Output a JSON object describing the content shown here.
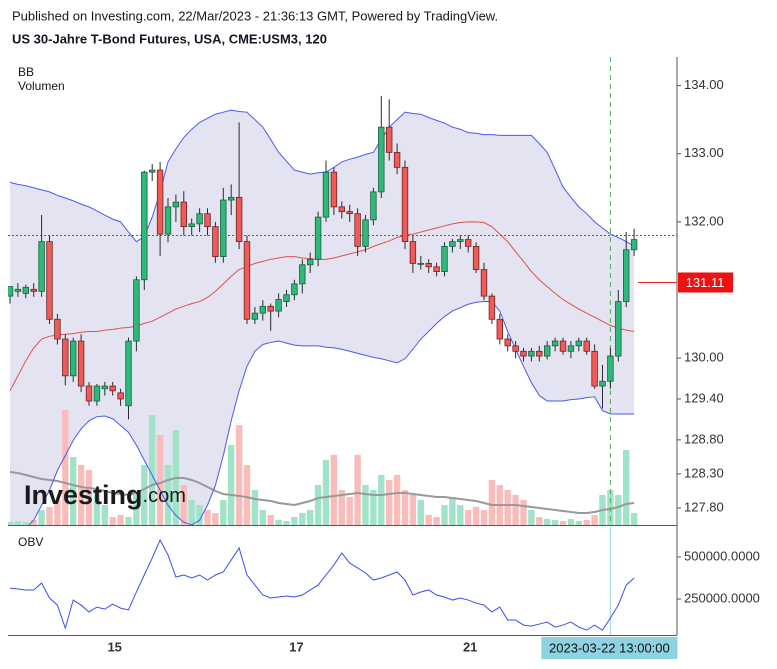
{
  "chart_data": {
    "type": "candlestick",
    "source": "Published on Investing.com, 22/Mar/2023 - 21:36:13 GMT, Powered by TradingView.",
    "title": "US 30-Jahre T-Bond Futures, USA, CME:USM3, 120",
    "watermark": {
      "brand": "Investing",
      "suffix": ".com"
    },
    "categories": [
      null,
      null,
      null,
      null,
      null,
      null,
      null,
      null,
      null,
      null,
      null,
      null,
      null,
      "15",
      null,
      null,
      null,
      null,
      null,
      null,
      null,
      null,
      null,
      null,
      null,
      null,
      null,
      null,
      null,
      null,
      null,
      null,
      null,
      null,
      null,
      null,
      "17",
      null,
      null,
      null,
      null,
      null,
      null,
      null,
      null,
      null,
      null,
      null,
      null,
      null,
      null,
      null,
      null,
      null,
      null,
      null,
      null,
      null,
      "21",
      null,
      null,
      null,
      null,
      null,
      null,
      null,
      null,
      null,
      null,
      null,
      null,
      null,
      null,
      null,
      null,
      null,
      "2023-03-22 13:00:00",
      null,
      null,
      null
    ],
    "crosshair_index": 76,
    "up_color": "#2fb87a",
    "down_color": "#f05a57",
    "ohlc": [
      [
        130.91,
        131.05,
        130.8,
        131.05
      ],
      [
        130.98,
        131.1,
        130.9,
        131.01
      ],
      [
        130.95,
        131.08,
        130.88,
        131.04
      ],
      [
        131.01,
        131.1,
        130.9,
        130.98
      ],
      [
        130.98,
        132.1,
        130.9,
        131.71
      ],
      [
        131.71,
        131.8,
        130.5,
        130.57
      ],
      [
        130.57,
        130.65,
        130.2,
        130.28
      ],
      [
        130.28,
        130.35,
        129.6,
        129.74
      ],
      [
        129.74,
        130.3,
        129.65,
        130.25
      ],
      [
        130.25,
        130.35,
        129.5,
        129.59
      ],
      [
        129.59,
        129.65,
        129.3,
        129.37
      ],
      [
        129.37,
        129.62,
        129.3,
        129.59
      ],
      [
        129.55,
        129.65,
        129.45,
        129.59
      ],
      [
        129.59,
        129.65,
        129.45,
        129.52
      ],
      [
        129.49,
        129.55,
        129.3,
        129.4
      ],
      [
        129.3,
        130.3,
        129.1,
        130.25
      ],
      [
        130.25,
        131.2,
        130.1,
        131.15
      ],
      [
        131.15,
        132.75,
        131.0,
        132.73
      ],
      [
        132.73,
        132.85,
        132.6,
        132.76
      ],
      [
        132.76,
        132.88,
        131.5,
        131.82
      ],
      [
        131.82,
        132.35,
        131.7,
        132.22
      ],
      [
        132.22,
        132.4,
        132.0,
        132.29
      ],
      [
        132.29,
        132.45,
        131.8,
        131.93
      ],
      [
        131.93,
        132.05,
        131.8,
        131.97
      ],
      [
        131.97,
        132.2,
        131.85,
        132.12
      ],
      [
        132.12,
        132.2,
        131.8,
        131.93
      ],
      [
        131.93,
        132.0,
        131.4,
        131.49
      ],
      [
        131.49,
        132.5,
        131.4,
        132.32
      ],
      [
        132.32,
        132.55,
        132.1,
        132.36
      ],
      [
        132.36,
        133.46,
        131.6,
        131.71
      ],
      [
        131.71,
        131.8,
        130.5,
        130.57
      ],
      [
        130.57,
        130.75,
        130.5,
        130.66
      ],
      [
        130.66,
        130.85,
        130.55,
        130.76
      ],
      [
        130.76,
        130.8,
        130.4,
        130.69
      ],
      [
        130.69,
        130.95,
        130.6,
        130.86
      ],
      [
        130.83,
        131.0,
        130.75,
        130.93
      ],
      [
        130.93,
        131.15,
        130.85,
        131.09
      ],
      [
        131.09,
        131.45,
        130.95,
        131.37
      ],
      [
        131.37,
        131.55,
        131.25,
        131.45
      ],
      [
        131.45,
        132.15,
        131.35,
        132.07
      ],
      [
        132.07,
        132.9,
        132.0,
        132.73
      ],
      [
        132.73,
        132.8,
        132.1,
        132.22
      ],
      [
        132.22,
        132.3,
        132.05,
        132.15
      ],
      [
        132.15,
        132.25,
        132.0,
        132.12
      ],
      [
        132.12,
        132.2,
        131.5,
        131.64
      ],
      [
        131.64,
        132.1,
        131.55,
        132.03
      ],
      [
        132.03,
        132.5,
        131.95,
        132.44
      ],
      [
        132.44,
        133.85,
        132.35,
        133.39
      ],
      [
        133.39,
        133.8,
        132.9,
        133.02
      ],
      [
        133.02,
        133.15,
        132.7,
        132.8
      ],
      [
        132.8,
        132.9,
        131.6,
        131.71
      ],
      [
        131.71,
        131.8,
        131.25,
        131.39
      ],
      [
        131.39,
        131.5,
        131.3,
        131.39
      ],
      [
        131.39,
        131.45,
        131.25,
        131.34
      ],
      [
        131.34,
        131.4,
        131.2,
        131.27
      ],
      [
        131.27,
        131.7,
        131.2,
        131.64
      ],
      [
        131.64,
        131.75,
        131.55,
        131.71
      ],
      [
        131.71,
        131.8,
        131.6,
        131.74
      ],
      [
        131.74,
        131.8,
        131.55,
        131.64
      ],
      [
        131.64,
        131.7,
        131.25,
        131.3
      ],
      [
        131.3,
        131.4,
        130.85,
        130.91
      ],
      [
        130.91,
        130.95,
        130.5,
        130.57
      ],
      [
        130.57,
        130.65,
        130.2,
        130.28
      ],
      [
        130.28,
        130.35,
        130.1,
        130.18
      ],
      [
        130.18,
        130.25,
        130.0,
        130.1
      ],
      [
        130.1,
        130.15,
        129.95,
        130.03
      ],
      [
        130.03,
        130.15,
        129.95,
        130.1
      ],
      [
        130.1,
        130.18,
        129.95,
        130.03
      ],
      [
        130.03,
        130.25,
        129.98,
        130.18
      ],
      [
        130.18,
        130.3,
        130.1,
        130.25
      ],
      [
        130.25,
        130.3,
        130.05,
        130.1
      ],
      [
        130.1,
        130.25,
        130.0,
        130.18
      ],
      [
        130.18,
        130.3,
        130.1,
        130.25
      ],
      [
        130.25,
        130.3,
        130.05,
        130.1
      ],
      [
        130.1,
        130.2,
        129.55,
        129.59
      ],
      [
        129.59,
        129.9,
        129.26,
        129.66
      ],
      [
        129.66,
        130.15,
        129.55,
        130.03
      ],
      [
        130.03,
        131.0,
        129.95,
        130.83
      ],
      [
        130.83,
        131.85,
        130.75,
        131.59
      ],
      [
        131.59,
        131.9,
        131.5,
        131.74
      ]
    ],
    "bollinger": {
      "name": "BB",
      "band_color": "#4a5af0",
      "middle_color": "#e0504d",
      "fill": "#e3e3f1",
      "upper": [
        132.58,
        132.55,
        132.53,
        132.5,
        132.47,
        132.44,
        132.39,
        132.35,
        132.31,
        132.26,
        132.22,
        132.16,
        132.1,
        132.04,
        132.0,
        131.85,
        131.71,
        131.78,
        132.07,
        132.44,
        132.88,
        133.07,
        133.24,
        133.36,
        133.46,
        133.52,
        133.58,
        133.61,
        133.64,
        133.62,
        133.61,
        133.5,
        133.39,
        133.21,
        133.02,
        132.89,
        132.76,
        132.73,
        132.7,
        132.72,
        132.73,
        132.8,
        132.88,
        132.92,
        132.95,
        132.99,
        133.02,
        133.21,
        133.39,
        133.5,
        133.61,
        133.59,
        133.58,
        133.53,
        133.49,
        133.45,
        133.39,
        133.36,
        133.31,
        133.3,
        133.28,
        133.28,
        133.27,
        133.27,
        133.27,
        133.27,
        133.27,
        133.15,
        133.02,
        132.77,
        132.51,
        132.36,
        132.22,
        132.12,
        132.0,
        131.91,
        131.82,
        131.77,
        131.71,
        131.64
      ],
      "middle": [
        129.52,
        129.74,
        129.96,
        130.15,
        130.28,
        130.32,
        130.34,
        130.35,
        130.36,
        130.38,
        130.39,
        130.39,
        130.41,
        130.42,
        130.44,
        130.45,
        130.47,
        130.51,
        130.54,
        130.6,
        130.66,
        130.72,
        130.76,
        130.8,
        130.83,
        130.89,
        130.98,
        131.09,
        131.2,
        131.3,
        131.34,
        131.39,
        131.42,
        131.45,
        131.47,
        131.49,
        131.49,
        131.47,
        131.46,
        131.45,
        131.45,
        131.47,
        131.5,
        131.53,
        131.56,
        131.59,
        131.64,
        131.68,
        131.72,
        131.77,
        131.8,
        131.82,
        131.85,
        131.88,
        131.91,
        131.94,
        131.97,
        131.99,
        132.0,
        132.0,
        131.99,
        131.93,
        131.82,
        131.71,
        131.56,
        131.42,
        131.27,
        131.15,
        131.05,
        130.95,
        130.86,
        130.79,
        130.72,
        130.66,
        130.6,
        130.54,
        130.48,
        130.44,
        130.41,
        130.39
      ],
      "lower": [
        127.33,
        127.4,
        127.5,
        127.62,
        127.84,
        128.06,
        128.35,
        128.57,
        128.79,
        128.96,
        129.08,
        129.14,
        129.15,
        129.11,
        129.01,
        128.91,
        128.72,
        128.5,
        128.28,
        128.06,
        127.84,
        127.69,
        127.59,
        127.55,
        127.62,
        127.84,
        128.13,
        128.57,
        129.08,
        129.52,
        129.88,
        130.1,
        130.2,
        130.23,
        130.25,
        130.22,
        130.19,
        130.18,
        130.18,
        130.18,
        130.16,
        130.15,
        130.13,
        130.1,
        130.07,
        130.04,
        130.01,
        129.99,
        129.96,
        129.93,
        129.99,
        130.13,
        130.28,
        130.39,
        130.51,
        130.61,
        130.69,
        130.74,
        130.79,
        130.82,
        130.83,
        130.83,
        130.69,
        130.39,
        130.13,
        129.88,
        129.64,
        129.45,
        129.37,
        129.37,
        129.37,
        129.39,
        129.4,
        129.42,
        129.43,
        129.23,
        129.18,
        129.18,
        129.18,
        129.18
      ]
    },
    "volume": {
      "name": "Volumen",
      "up_color": "#9fe3c8",
      "down_color": "#f9bcbb",
      "ma_color": "#999999",
      "values": [
        3,
        4,
        3,
        5,
        15,
        18,
        25,
        115,
        68,
        60,
        55,
        35,
        20,
        8,
        10,
        8,
        30,
        60,
        110,
        90,
        60,
        95,
        40,
        25,
        20,
        15,
        12,
        25,
        80,
        100,
        60,
        35,
        15,
        10,
        5,
        4,
        8,
        12,
        15,
        40,
        65,
        70,
        35,
        28,
        70,
        40,
        35,
        50,
        45,
        50,
        35,
        30,
        25,
        10,
        8,
        20,
        28,
        20,
        15,
        18,
        15,
        45,
        40,
        35,
        30,
        25,
        15,
        8,
        6,
        5,
        4,
        6,
        4,
        5,
        10,
        30,
        35,
        30,
        75,
        12
      ],
      "ma": [
        53,
        52,
        50,
        48,
        46,
        45,
        44,
        42,
        40,
        38,
        37,
        36,
        34,
        32,
        31,
        30,
        32,
        36,
        40,
        42,
        45,
        47,
        47,
        45,
        42,
        38,
        34,
        31,
        30,
        29,
        28,
        26,
        25,
        24,
        22,
        21,
        20,
        22,
        24,
        27,
        28,
        29,
        30,
        31,
        32,
        31,
        30,
        30,
        31,
        32,
        32,
        31,
        30,
        29,
        28,
        28,
        27,
        26,
        25,
        24,
        22,
        20,
        20,
        20,
        20,
        19,
        18,
        17,
        16,
        15,
        14,
        13,
        12,
        12,
        13,
        15,
        16,
        18,
        21,
        22
      ]
    },
    "ylim": [
      127.55,
      134.42
    ],
    "yticks": [
      {
        "value": 134,
        "label": "134.00"
      },
      {
        "value": 133,
        "label": "133.00"
      },
      {
        "value": 132,
        "label": "132.00"
      },
      {
        "value": 130,
        "label": "130.00"
      },
      {
        "value": 129.4,
        "label": "129.40"
      },
      {
        "value": 128.8,
        "label": "128.80"
      },
      {
        "value": 128.3,
        "label": "128.30"
      },
      {
        "value": 127.8,
        "label": "127.80"
      }
    ],
    "price_line": 131.8,
    "price_marker": {
      "value": 131.11,
      "label": "131.11"
    },
    "obv": {
      "name": "OBV",
      "color": "#3b4df0",
      "values": [
        315000,
        310000,
        304000,
        304000,
        345000,
        256000,
        214000,
        77000,
        244000,
        214000,
        173000,
        202000,
        190000,
        220000,
        196000,
        185000,
        292000,
        393000,
        494000,
        601000,
        512000,
        381000,
        393000,
        375000,
        393000,
        363000,
        393000,
        411000,
        482000,
        554000,
        393000,
        333000,
        274000,
        256000,
        262000,
        268000,
        262000,
        274000,
        304000,
        333000,
        393000,
        452000,
        524000,
        464000,
        435000,
        405000,
        363000,
        375000,
        393000,
        411000,
        363000,
        274000,
        292000,
        304000,
        274000,
        262000,
        244000,
        256000,
        244000,
        226000,
        214000,
        173000,
        202000,
        125000,
        125000,
        95000,
        89000,
        101000,
        113000,
        83000,
        95000,
        113000,
        83000,
        65000,
        95000,
        65000,
        137000,
        214000,
        333000,
        375000
      ],
      "ylim": [
        36000,
        631000
      ],
      "yticks": [
        {
          "value": 500000,
          "label": "500000.0000"
        },
        {
          "value": 250000,
          "label": "250000.0000"
        }
      ]
    }
  }
}
